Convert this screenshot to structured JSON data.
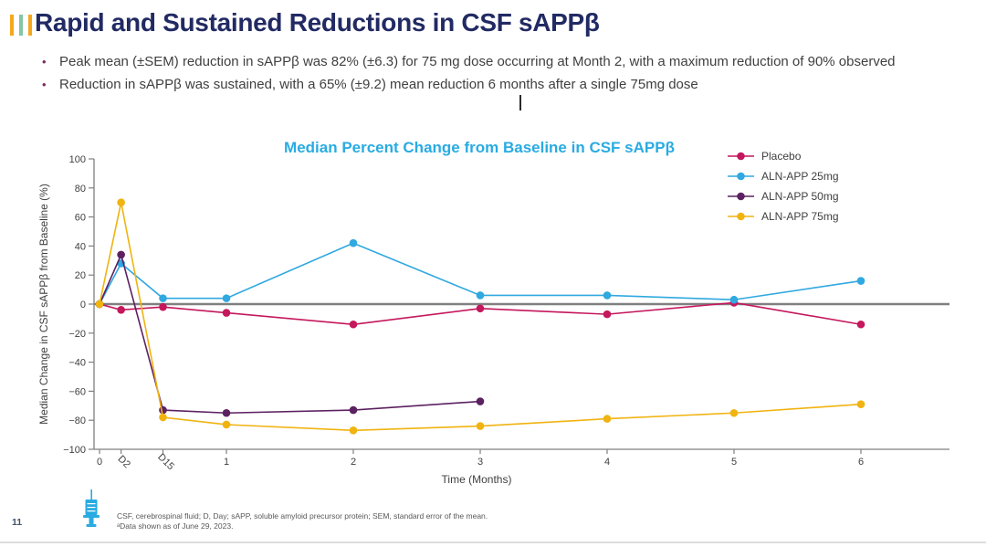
{
  "slide": {
    "title": "Rapid and Sustained Reductions in CSF sAPPβ",
    "accent_bar_colors": [
      "#F5A81C",
      "#82C7A5",
      "#F5A81C"
    ],
    "bullets": [
      "Peak mean (±SEM) reduction in sAPPβ was 82% (±6.3) for 75 mg dose occurring at Month 2, with a maximum reduction of 90% observed",
      "Reduction in sAPPβ was sustained, with a 65% (±9.2) mean reduction 6 months after a single 75mg dose"
    ],
    "footnotes": [
      "CSF, cerebrospinal fluid; D, Day; sAPP, soluble amyloid precursor protein; SEM, standard error of the mean.",
      "ᵃData shown as of June 29, 2023."
    ],
    "page_number": "11"
  },
  "chart_data": {
    "type": "line",
    "title": "Median Percent Change from Baseline in CSF sAPPβ",
    "xlabel": "Time (Months)",
    "ylabel": "Median Change in CSF sAPPβ from Baseline (%)",
    "ylim": [
      -100,
      100
    ],
    "ytick_step": 20,
    "grid": false,
    "zero_line": true,
    "legend_position": "top-right",
    "categories": [
      "0",
      "D2",
      "D15",
      "1",
      "2",
      "3",
      "4",
      "5",
      "6"
    ],
    "x_positions_months": [
      0,
      0.17,
      0.5,
      1,
      2,
      3,
      4,
      5,
      6
    ],
    "rotated_tick_labels": [
      "D2",
      "D15"
    ],
    "series": [
      {
        "name": "Placebo",
        "color": "#C4175C",
        "values": [
          0,
          -4,
          -2,
          -6,
          -14,
          -3,
          -7,
          1,
          -14
        ]
      },
      {
        "name": "ALN-APP 25mg",
        "color": "#30A8E0",
        "values": [
          0,
          28,
          4,
          4,
          42,
          6,
          6,
          3,
          16
        ]
      },
      {
        "name": "ALN-APP 50mg",
        "color": "#5C2161",
        "values": [
          0,
          34,
          -73,
          -75,
          -73,
          -67,
          null,
          null,
          null
        ]
      },
      {
        "name": "ALN-APP 75mg",
        "color": "#F0B310",
        "values": [
          0,
          70,
          -78,
          -83,
          -87,
          -84,
          -79,
          -75,
          -69
        ]
      }
    ],
    "annotations": {
      "dose_icon": "syringe-at-time-0"
    }
  }
}
